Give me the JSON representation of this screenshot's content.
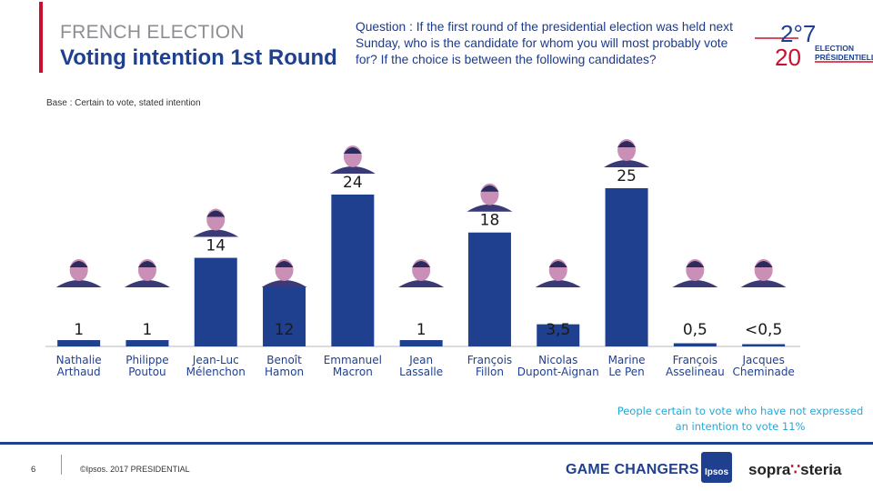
{
  "header": {
    "kicker": "FRENCH ELECTION",
    "title": "Voting intention 1st Round",
    "question": "Question : If the first round of the presidential election was held next Sunday, who is the candidate for whom you will most probably vote for? If the choice is between the following candidates?",
    "base": "Base : Certain to vote, stated intention"
  },
  "logo": {
    "year_top": "2°7",
    "year_bottom": "20",
    "line1": "ELECTION",
    "line2": "PRÉSIDENTIELLE"
  },
  "chart_data": {
    "type": "bar",
    "title": "Voting intention 1st Round",
    "xlabel": "",
    "ylabel": "",
    "ylim": [
      0,
      25
    ],
    "grid": false,
    "categories": [
      "Nathalie Arthaud",
      "Philippe Poutou",
      "Jean-Luc Mélenchon",
      "Benoît Hamon",
      "Emmanuel Macron",
      "Jean Lassalle",
      "François Fillon",
      "Nicolas Dupont-Aignan",
      "Marine Le Pen",
      "François Asselineau",
      "Jacques Cheminade"
    ],
    "category_lines": [
      [
        "Nathalie",
        "Arthaud"
      ],
      [
        "Philippe",
        "Poutou"
      ],
      [
        "Jean-Luc",
        "Mélenchon"
      ],
      [
        "Benoît",
        "Hamon"
      ],
      [
        "Emmanuel",
        "Macron"
      ],
      [
        "Jean",
        "Lassalle"
      ],
      [
        "François",
        "Fillon"
      ],
      [
        "Nicolas",
        "Dupont-Aignan"
      ],
      [
        "Marine",
        "Le Pen"
      ],
      [
        "François",
        "Asselineau"
      ],
      [
        "Jacques",
        "Cheminade"
      ]
    ],
    "values": [
      1,
      1,
      14,
      12,
      24,
      1,
      18,
      3.5,
      25,
      0.5,
      0.2
    ],
    "data_labels": [
      "1",
      "1",
      "14",
      "12",
      "24",
      "1",
      "18",
      "3,5",
      "25",
      "0,5",
      "<0,5"
    ],
    "bar_color": "#1f3f8f"
  },
  "footnote": {
    "line1": "People certain to vote who have not expressed",
    "line2": "an intention to vote 11%"
  },
  "footer": {
    "page": "6",
    "copyright": "©Ipsos. 2017 PRESIDENTIAL",
    "game_changers": "GAME CHANGERS",
    "ipsos": "Ipsos",
    "sopra": "sopra",
    "steria": "steria"
  },
  "colors": {
    "accent_red": "#c8102e",
    "brand_blue": "#1f3f8f",
    "footnote_blue": "#25a9d8"
  }
}
